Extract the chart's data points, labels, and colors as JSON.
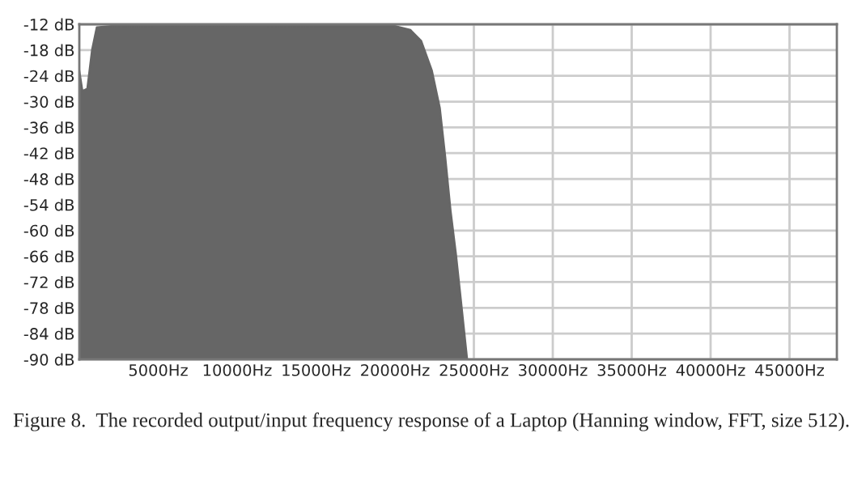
{
  "chart_data": {
    "type": "area",
    "x": [
      0,
      200,
      500,
      800,
      1100,
      2000,
      8000,
      15000,
      20000,
      20980,
      21660,
      22340,
      22850,
      23190,
      23530,
      23870,
      24200,
      24580
    ],
    "series": [
      {
        "color": "#666666",
        "values": [
          -22.7,
          -27.5,
          -27,
          -18,
          -12.7,
          -12.4,
          -12.3,
          -12.4,
          -12.4,
          -13.3,
          -15.8,
          -22.7,
          -31.5,
          -42.8,
          -55.4,
          -65.5,
          -76.8,
          -90
        ]
      }
    ],
    "xlim": [
      0,
      48000
    ],
    "ylim": [
      -90,
      -12
    ],
    "xticks": [
      {
        "value": 5000,
        "label": "5000Hz"
      },
      {
        "value": 10000,
        "label": "10000Hz"
      },
      {
        "value": 15000,
        "label": "15000Hz"
      },
      {
        "value": 20000,
        "label": "20000Hz"
      },
      {
        "value": 25000,
        "label": "25000Hz"
      },
      {
        "value": 30000,
        "label": "30000Hz"
      },
      {
        "value": 35000,
        "label": "35000Hz"
      },
      {
        "value": 40000,
        "label": "40000Hz"
      },
      {
        "value": 45000,
        "label": "45000Hz"
      }
    ],
    "yticks": [
      {
        "value": -12,
        "label": "-12 dB"
      },
      {
        "value": -18,
        "label": "-18 dB"
      },
      {
        "value": -24,
        "label": "-24 dB"
      },
      {
        "value": -30,
        "label": "-30 dB"
      },
      {
        "value": -36,
        "label": "-36 dB"
      },
      {
        "value": -42,
        "label": "-42 dB"
      },
      {
        "value": -48,
        "label": "-48 dB"
      },
      {
        "value": -54,
        "label": "-54 dB"
      },
      {
        "value": -60,
        "label": "-60 dB"
      },
      {
        "value": -66,
        "label": "-66 dB"
      },
      {
        "value": -72,
        "label": "-72 dB"
      },
      {
        "value": -78,
        "label": "-78 dB"
      },
      {
        "value": -84,
        "label": "-84 dB"
      },
      {
        "value": -90,
        "label": "-90 dB"
      }
    ],
    "grid": true,
    "annotations": [
      "Figure 8.  The recorded output/input frequency response of a Laptop (Hanning window, FFT, size 512)."
    ]
  }
}
